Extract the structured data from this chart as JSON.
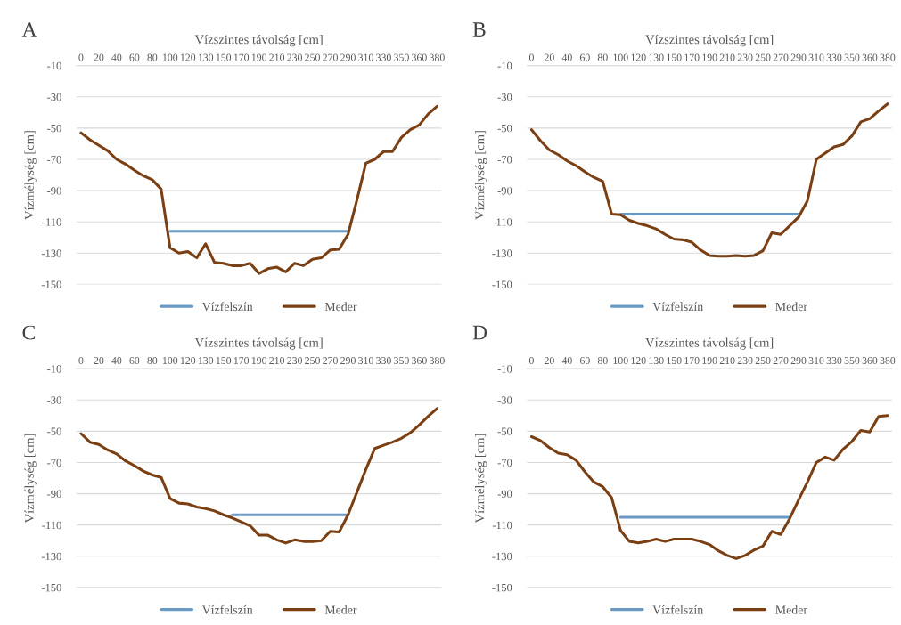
{
  "chart_data": [
    {
      "type": "line",
      "title": "A",
      "xlabel": "Vízszintes távolság [cm]",
      "ylabel": "Vízmélység [cm]",
      "categories": [
        "0",
        null,
        "20",
        null,
        "40",
        null,
        "60",
        null,
        "80",
        null,
        "100",
        null,
        "120",
        null,
        "130",
        null,
        "150",
        null,
        "170",
        null,
        "190",
        null,
        "210",
        null,
        "230",
        null,
        "250",
        null,
        "270",
        null,
        "290",
        null,
        "310",
        null,
        "330",
        null,
        "350",
        null,
        "360",
        null,
        "380"
      ],
      "series": [
        {
          "name": "Vízfelszín",
          "color": "#6a9ac4",
          "values": [
            null,
            null,
            null,
            null,
            null,
            null,
            null,
            null,
            null,
            null,
            -116,
            -116,
            -116,
            -116,
            -116,
            -116,
            -116,
            -116,
            -116,
            -116,
            -116,
            -116,
            -116,
            -116,
            -116,
            -116,
            -116,
            -116,
            -116,
            -116,
            -116,
            null,
            null,
            null,
            null,
            null,
            null,
            null,
            null,
            null,
            null
          ]
        },
        {
          "name": "Meder",
          "color": "#7b3f14",
          "values": [
            -53,
            -57.5,
            -61,
            -64.5,
            -70,
            -73,
            -77,
            -80.5,
            -83,
            -89,
            -126.5,
            -130,
            -129,
            -133,
            -124,
            -136,
            -136.5,
            -138,
            -138,
            -136.5,
            -143,
            -140,
            -139,
            -142,
            -136.5,
            -138,
            -134,
            -133,
            -128,
            -127.5,
            -118,
            -96,
            -72.5,
            -70,
            -65,
            -65,
            -56,
            -51,
            -48,
            -41,
            -36
          ]
        }
      ],
      "ylim": [
        -150,
        -10
      ],
      "yticks": [
        -10,
        -30,
        -50,
        -70,
        -90,
        -110,
        -130,
        -150
      ],
      "grid": "y",
      "legend": "bottom"
    },
    {
      "type": "line",
      "title": "B",
      "xlabel": "Vízszintes távolság [cm]",
      "ylabel": "Vízmélység [cm]",
      "categories": [
        "0",
        null,
        "20",
        null,
        "40",
        null,
        "60",
        null,
        "80",
        null,
        "100",
        null,
        "120",
        null,
        "130",
        null,
        "150",
        null,
        "170",
        null,
        "190",
        null,
        "210",
        null,
        "230",
        null,
        "250",
        null,
        "270",
        null,
        "290",
        null,
        "310",
        null,
        "330",
        null,
        "350",
        null,
        "360",
        null,
        "380"
      ],
      "series": [
        {
          "name": "Vízfelszín",
          "color": "#6a9ac4",
          "values": [
            null,
            null,
            null,
            null,
            null,
            null,
            null,
            null,
            null,
            null,
            -105,
            -105,
            -105,
            -105,
            -105,
            -105,
            -105,
            -105,
            -105,
            -105,
            -105,
            -105,
            -105,
            -105,
            -105,
            -105,
            -105,
            -105,
            -105,
            -105,
            -105,
            null,
            null,
            null,
            null,
            null,
            null,
            null,
            null,
            null,
            null
          ]
        },
        {
          "name": "Meder",
          "color": "#7b3f14",
          "values": [
            -51,
            -58,
            -64,
            -67,
            -71,
            -74,
            -78,
            -81.5,
            -84,
            -105,
            -105.5,
            -109,
            -111,
            -112.5,
            -114.5,
            -118,
            -121,
            -121.5,
            -123,
            -128,
            -131.5,
            -132,
            -132,
            -131.5,
            -132,
            -131.5,
            -128.5,
            -117,
            -118,
            -112.5,
            -107,
            -96.5,
            -70,
            -66,
            -62,
            -60.5,
            -55,
            -46,
            -44,
            -39,
            -34.5
          ]
        }
      ],
      "ylim": [
        -150,
        -10
      ],
      "yticks": [
        -10,
        -30,
        -50,
        -70,
        -90,
        -110,
        -130,
        -150
      ],
      "grid": "y",
      "legend": "bottom"
    },
    {
      "type": "line",
      "title": "C",
      "xlabel": "Vízszintes távolság [cm]",
      "ylabel": "Vízmélység [cm]",
      "categories": [
        "0",
        null,
        "20",
        null,
        "40",
        null,
        "60",
        null,
        "80",
        null,
        "100",
        null,
        "120",
        null,
        "130",
        null,
        "150",
        null,
        "170",
        null,
        "190",
        null,
        "210",
        null,
        "230",
        null,
        "250",
        null,
        "270",
        null,
        "290",
        null,
        "310",
        null,
        "330",
        null,
        "350",
        null,
        "360",
        null,
        "380"
      ],
      "series": [
        {
          "name": "Vízfelszín",
          "color": "#6a9ac4",
          "values": [
            null,
            null,
            null,
            null,
            null,
            null,
            null,
            null,
            null,
            null,
            null,
            null,
            null,
            null,
            null,
            null,
            null,
            -103.5,
            -103.5,
            -103.5,
            -103.5,
            -103.5,
            -103.5,
            -103.5,
            -103.5,
            -103.5,
            -103.5,
            -103.5,
            -103.5,
            -103.5,
            -103.5,
            null,
            null,
            null,
            null,
            null,
            null,
            null,
            null,
            null,
            null
          ]
        },
        {
          "name": "Meder",
          "color": "#7b3f14",
          "values": [
            -51.5,
            -57,
            -58.5,
            -62,
            -64.5,
            -69,
            -72,
            -75.5,
            -78,
            -79.5,
            -93,
            -96,
            -96.5,
            -98.5,
            -99.5,
            -101,
            -103.5,
            -105.5,
            -108,
            -110.5,
            -116.5,
            -116.5,
            -119.5,
            -121.5,
            -119.5,
            -120.5,
            -120.5,
            -120,
            -114,
            -114.5,
            -103.5,
            -89,
            -74.5,
            -61,
            -59,
            -57,
            -54.5,
            -51,
            -46,
            -40.5,
            -35.5
          ]
        }
      ],
      "ylim": [
        -150,
        -10
      ],
      "yticks": [
        -10,
        -30,
        -50,
        -70,
        -90,
        -110,
        -130,
        -150
      ],
      "grid": "y",
      "legend": "bottom"
    },
    {
      "type": "line",
      "title": "D",
      "xlabel": "Vízszintes távolság [cm]",
      "ylabel": "Vízmélység [cm]",
      "categories": [
        "0",
        null,
        "20",
        null,
        "40",
        null,
        "60",
        null,
        "80",
        null,
        "100",
        null,
        "120",
        null,
        "130",
        null,
        "150",
        null,
        "170",
        null,
        "190",
        null,
        "210",
        null,
        "230",
        null,
        "250",
        null,
        "270",
        null,
        "290",
        null,
        "310",
        null,
        "330",
        null,
        "350",
        null,
        "360",
        null,
        "380"
      ],
      "series": [
        {
          "name": "Vízfelszín",
          "color": "#6a9ac4",
          "values": [
            null,
            null,
            null,
            null,
            null,
            null,
            null,
            null,
            null,
            null,
            -105,
            -105,
            -105,
            -105,
            -105,
            -105,
            -105,
            -105,
            -105,
            -105,
            -105,
            -105,
            -105,
            -105,
            -105,
            -105,
            -105,
            -105,
            -105,
            -105,
            null,
            null,
            null,
            null,
            null,
            null,
            null,
            null,
            null,
            null,
            null
          ]
        },
        {
          "name": "Meder",
          "color": "#7b3f14",
          "values": [
            -53.5,
            -56,
            -60.5,
            -64,
            -65,
            -68.5,
            -76,
            -82.5,
            -85.5,
            -92.5,
            -113.5,
            -120.5,
            -121.5,
            -120.5,
            -119,
            -120.5,
            -119,
            -119,
            -119,
            -120.5,
            -122.5,
            -126.5,
            -129.5,
            -131.5,
            -129.5,
            -126,
            -123.5,
            -114,
            -116,
            -106,
            -94,
            -82.5,
            -70,
            -66.5,
            -68.5,
            -61.5,
            -56.5,
            -49.5,
            -50.5,
            -40.5,
            -40
          ]
        }
      ],
      "ylim": [
        -150,
        -10
      ],
      "yticks": [
        -10,
        -30,
        -50,
        -70,
        -90,
        -110,
        -130,
        -150
      ],
      "grid": "y",
      "legend": "bottom"
    }
  ]
}
